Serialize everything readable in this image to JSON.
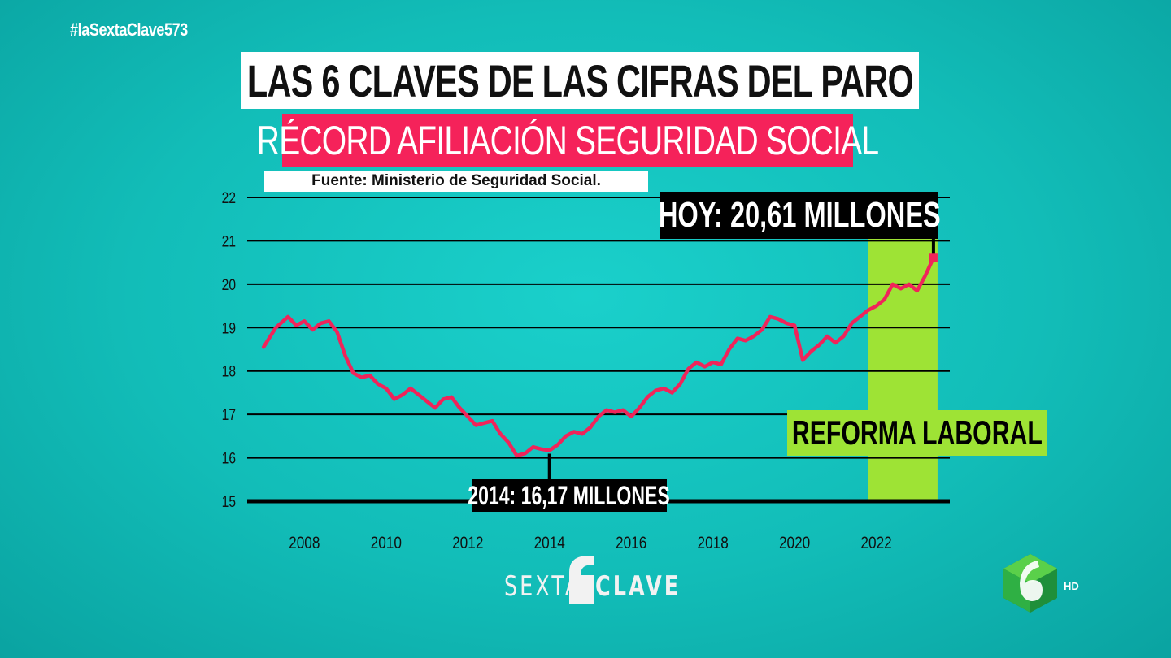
{
  "hashtag": "#laSextaClave573",
  "title": "LAS 6 CLAVES DE LAS CIFRAS DEL PARO",
  "subtitle": "RÉCORD AFILIACIÓN SEGURIDAD SOCIAL",
  "source": "Fuente: Ministerio de Seguridad Social.",
  "annotations": {
    "today": "HOY: 20,61 MILLONES",
    "low": "2014: 16,17 MILLONES",
    "reform": "REFORMA LABORAL"
  },
  "logo": {
    "sexta_left": "SEXTA",
    "sexta_right": "CLAVE",
    "hd": "HD"
  },
  "colors": {
    "background": "#12bdb8",
    "line": "#f0245a",
    "reform_band": "#9ee335",
    "title_bg": "#ffffff",
    "subtitle_bg": "#f5225a"
  },
  "chart_data": {
    "type": "line",
    "title": "",
    "xlabel": "",
    "ylabel": "",
    "ylim": [
      15,
      22
    ],
    "xlim": [
      2006.6,
      2023.8
    ],
    "y_ticks": [
      15,
      16,
      17,
      18,
      19,
      20,
      21,
      22
    ],
    "x_ticks": [
      2008,
      2010,
      2012,
      2014,
      2016,
      2018,
      2020,
      2022
    ],
    "grid": true,
    "reform_band": [
      2021.8,
      2023.5
    ],
    "series": [
      {
        "x": [
          2007.0,
          2007.3,
          2007.6,
          2007.8,
          2008.0,
          2008.2,
          2008.4,
          2008.6,
          2008.8,
          2009.0,
          2009.2,
          2009.4,
          2009.6,
          2009.8,
          2010.0,
          2010.2,
          2010.4,
          2010.6,
          2010.8,
          2011.0,
          2011.2,
          2011.4,
          2011.6,
          2011.8,
          2012.0,
          2012.2,
          2012.4,
          2012.6,
          2012.8,
          2013.0,
          2013.2,
          2013.4,
          2013.6,
          2013.8,
          2014.0,
          2014.2,
          2014.4,
          2014.6,
          2014.8,
          2015.0,
          2015.2,
          2015.4,
          2015.6,
          2015.8,
          2016.0,
          2016.2,
          2016.4,
          2016.6,
          2016.8,
          2017.0,
          2017.2,
          2017.4,
          2017.6,
          2017.8,
          2018.0,
          2018.2,
          2018.4,
          2018.6,
          2018.8,
          2019.0,
          2019.2,
          2019.4,
          2019.6,
          2019.8,
          2020.0,
          2020.2,
          2020.4,
          2020.6,
          2020.8,
          2021.0,
          2021.2,
          2021.4,
          2021.6,
          2021.8,
          2022.0,
          2022.2,
          2022.4,
          2022.6,
          2022.8,
          2023.0,
          2023.2,
          2023.4
        ],
        "values": [
          18.55,
          19.0,
          19.25,
          19.05,
          19.15,
          18.95,
          19.1,
          19.15,
          18.9,
          18.35,
          17.95,
          17.85,
          17.9,
          17.7,
          17.6,
          17.35,
          17.45,
          17.6,
          17.45,
          17.3,
          17.15,
          17.35,
          17.4,
          17.15,
          16.95,
          16.75,
          16.8,
          16.85,
          16.55,
          16.35,
          16.05,
          16.1,
          16.25,
          16.2,
          16.17,
          16.3,
          16.5,
          16.6,
          16.55,
          16.7,
          16.95,
          17.1,
          17.05,
          17.1,
          16.95,
          17.15,
          17.4,
          17.55,
          17.6,
          17.5,
          17.7,
          18.05,
          18.2,
          18.1,
          18.2,
          18.15,
          18.5,
          18.75,
          18.7,
          18.8,
          18.95,
          19.25,
          19.2,
          19.1,
          19.05,
          18.25,
          18.45,
          18.6,
          18.8,
          18.65,
          18.8,
          19.1,
          19.25,
          19.4,
          19.5,
          19.65,
          20.0,
          19.9,
          20.0,
          19.85,
          20.2,
          20.61
        ]
      }
    ]
  }
}
